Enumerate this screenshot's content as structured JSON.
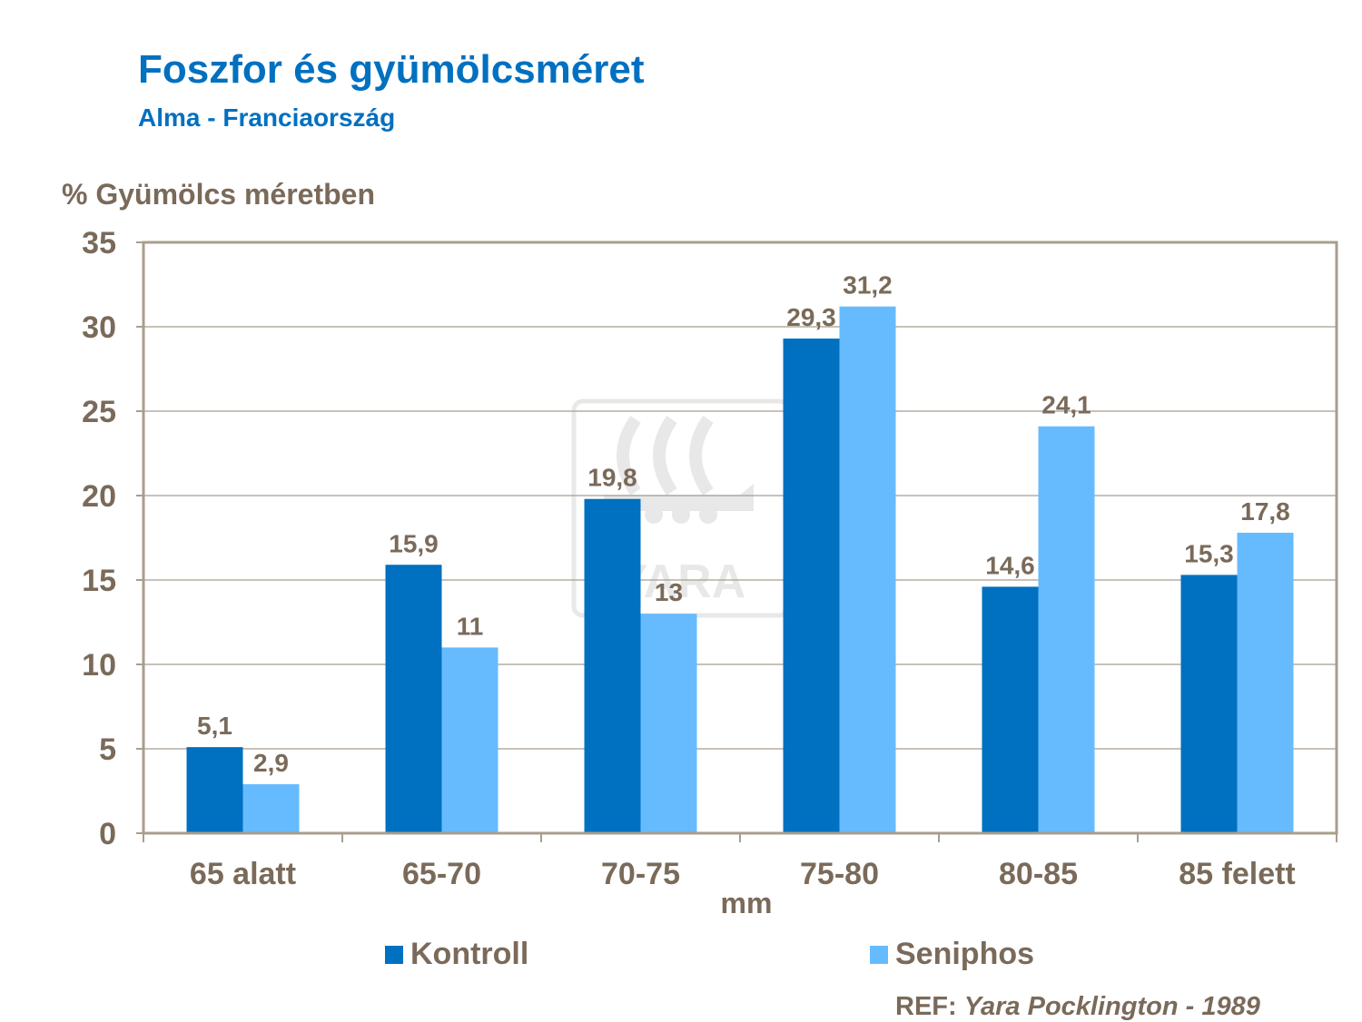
{
  "title": "Foszfor és gyümölcsméret",
  "subtitle": "Alma - Franciaország",
  "colors": {
    "title": "#0070C0",
    "text": "#7A6A5A",
    "kontroll": "#0070C0",
    "seniphos": "#66BBFF",
    "grid": "#A89E8C"
  },
  "chart_data": {
    "type": "bar",
    "ylabel": "% Gyümölcs méretben",
    "xlabel": "mm",
    "ylim": [
      0,
      35
    ],
    "yticks": [
      0,
      5,
      10,
      15,
      20,
      25,
      30,
      35
    ],
    "grid": true,
    "categories": [
      "65 alatt",
      "65-70",
      "70-75",
      "75-80",
      "80-85",
      "85 felett"
    ],
    "series": [
      {
        "name": "Kontroll",
        "values": [
          5.1,
          15.9,
          19.8,
          29.3,
          14.6,
          15.3
        ],
        "labels": [
          "5,1",
          "15,9",
          "19,8",
          "29,3",
          "14,6",
          "15,3"
        ]
      },
      {
        "name": "Seniphos",
        "values": [
          2.9,
          11,
          13,
          31.2,
          24.1,
          17.8
        ],
        "labels": [
          "2,9",
          "11",
          "13",
          "31,2",
          "24,1",
          "17,8"
        ]
      }
    ],
    "legend_position": "bottom"
  },
  "watermark": "YARA",
  "reference": {
    "prefix": "REF:",
    "source": "Yara Pocklington -  1989"
  }
}
